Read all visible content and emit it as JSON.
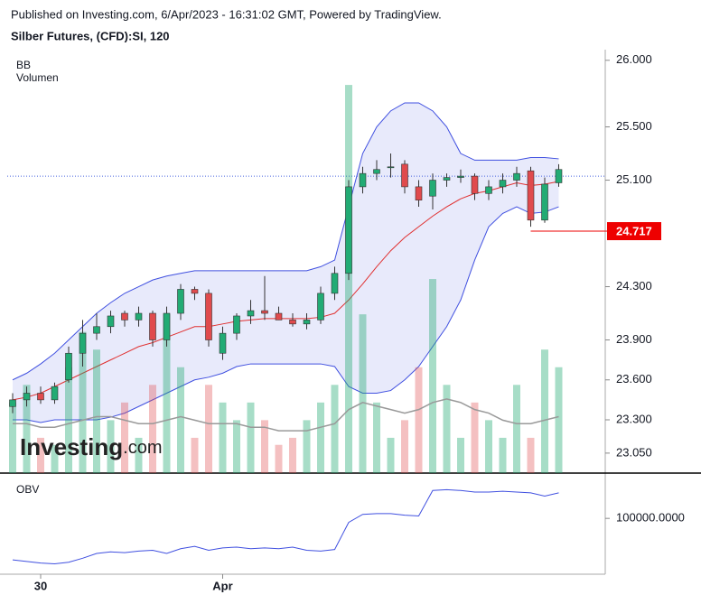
{
  "chart_data": {
    "type": "candlestick",
    "title": "Published on Investing.com, 6/Apr/2023 - 16:31:02 GMT, Powered by TradingView.",
    "subtitle": "Silber Futures, (CFD):SI, 120",
    "indicators": [
      "BB",
      "Volumen"
    ],
    "obv_label": "OBV",
    "logo": {
      "name": "Investing",
      "suffix": ".com"
    },
    "categories": [
      null,
      null,
      "30",
      null,
      null,
      null,
      null,
      null,
      null,
      null,
      null,
      null,
      null,
      null,
      null,
      "Apr",
      null,
      null,
      null,
      null,
      null,
      null,
      null,
      null,
      null,
      null,
      null,
      null,
      null,
      null,
      null,
      null,
      null,
      null,
      null,
      null,
      null,
      null,
      null,
      null
    ],
    "open": [
      23.4,
      23.45,
      23.5,
      23.45,
      23.6,
      23.8,
      23.95,
      24.0,
      24.1,
      24.05,
      24.1,
      23.9,
      24.1,
      24.28,
      24.25,
      23.8,
      23.95,
      24.08,
      24.12,
      24.1,
      24.05,
      24.02,
      24.05,
      24.25,
      24.4,
      25.05,
      25.15,
      25.2,
      25.22,
      25.05,
      24.98,
      25.1,
      25.12,
      25.13,
      25.0,
      25.05,
      25.1,
      25.17,
      24.8,
      25.08
    ],
    "high": [
      23.5,
      23.55,
      23.55,
      23.58,
      23.85,
      24.05,
      24.1,
      24.12,
      24.12,
      24.15,
      24.12,
      24.15,
      24.32,
      24.3,
      24.28,
      24.0,
      24.1,
      24.2,
      24.38,
      24.15,
      24.1,
      24.1,
      24.3,
      24.45,
      25.1,
      25.2,
      25.25,
      25.3,
      25.25,
      25.1,
      25.15,
      25.15,
      25.18,
      25.15,
      25.1,
      25.15,
      25.2,
      25.2,
      25.12,
      25.22
    ],
    "low": [
      23.35,
      23.4,
      23.42,
      23.42,
      23.58,
      23.7,
      23.9,
      23.95,
      24.0,
      24.0,
      23.85,
      23.85,
      24.05,
      24.2,
      23.85,
      23.75,
      23.9,
      24.02,
      24.05,
      24.05,
      24.0,
      23.98,
      24.02,
      24.2,
      24.35,
      25.0,
      25.1,
      25.12,
      25.0,
      24.9,
      24.88,
      25.05,
      25.08,
      24.95,
      24.95,
      25.0,
      25.05,
      24.75,
      24.78,
      25.05
    ],
    "close": [
      23.45,
      23.5,
      23.45,
      23.55,
      23.8,
      23.95,
      24.0,
      24.08,
      24.05,
      24.1,
      23.9,
      24.1,
      24.28,
      24.25,
      23.9,
      23.95,
      24.08,
      24.12,
      24.1,
      24.05,
      24.02,
      24.05,
      24.25,
      24.4,
      25.05,
      25.15,
      25.18,
      25.2,
      25.05,
      24.95,
      25.1,
      25.12,
      25.13,
      25.0,
      25.05,
      25.1,
      25.15,
      24.8,
      25.07,
      25.18
    ],
    "bb_upper": [
      23.6,
      23.65,
      23.72,
      23.8,
      23.9,
      24.0,
      24.1,
      24.18,
      24.25,
      24.3,
      24.35,
      24.38,
      24.4,
      24.42,
      24.42,
      24.42,
      24.42,
      24.42,
      24.42,
      24.42,
      24.42,
      24.42,
      24.45,
      24.5,
      24.9,
      25.3,
      25.5,
      25.62,
      25.68,
      25.68,
      25.62,
      25.5,
      25.3,
      25.25,
      25.25,
      25.25,
      25.25,
      25.27,
      25.27,
      25.26
    ],
    "bb_middle": [
      23.45,
      23.47,
      23.5,
      23.55,
      23.6,
      23.65,
      23.7,
      23.75,
      23.8,
      23.85,
      23.88,
      23.92,
      23.96,
      24.0,
      24.0,
      24.02,
      24.04,
      24.05,
      24.06,
      24.06,
      24.06,
      24.06,
      24.07,
      24.1,
      24.2,
      24.32,
      24.45,
      24.57,
      24.67,
      24.75,
      24.83,
      24.9,
      24.96,
      25.0,
      25.02,
      25.05,
      25.08,
      25.06,
      25.07,
      25.09
    ],
    "bb_lower": [
      23.3,
      23.3,
      23.28,
      23.3,
      23.3,
      23.3,
      23.3,
      23.32,
      23.35,
      23.4,
      23.45,
      23.5,
      23.55,
      23.6,
      23.62,
      23.65,
      23.7,
      23.72,
      23.72,
      23.72,
      23.72,
      23.72,
      23.72,
      23.7,
      23.55,
      23.5,
      23.5,
      23.52,
      23.6,
      23.7,
      23.85,
      24.0,
      24.2,
      24.5,
      24.75,
      24.85,
      24.9,
      24.85,
      24.86,
      24.9
    ],
    "volume": [
      20,
      25,
      10,
      8,
      30,
      40,
      35,
      15,
      20,
      10,
      25,
      45,
      30,
      10,
      25,
      20,
      15,
      20,
      15,
      8,
      10,
      15,
      20,
      25,
      110,
      45,
      20,
      10,
      15,
      30,
      55,
      25,
      10,
      20,
      15,
      10,
      25,
      10,
      35,
      30
    ],
    "volume_ma": [
      14,
      14,
      13,
      13,
      14,
      15,
      16,
      16,
      15,
      14,
      14,
      15,
      16,
      15,
      14,
      14,
      14,
      13,
      13,
      12,
      12,
      12,
      13,
      14,
      18,
      20,
      19,
      18,
      17,
      18,
      20,
      21,
      20,
      18,
      17,
      15,
      14,
      14,
      15,
      16
    ],
    "volume_lim": [
      0,
      120
    ],
    "obv": [
      99480,
      99460,
      99440,
      99430,
      99450,
      99500,
      99560,
      99580,
      99570,
      99590,
      99600,
      99560,
      99620,
      99650,
      99600,
      99630,
      99640,
      99620,
      99630,
      99620,
      99640,
      99600,
      99590,
      99610,
      99950,
      100050,
      100060,
      100060,
      100040,
      100030,
      100350,
      100360,
      100350,
      100330,
      100330,
      100340,
      100330,
      100320,
      100280,
      100320
    ],
    "obv_ylim": [
      99300,
      100500
    ],
    "obv_yticks": [
      {
        "value": 100000,
        "label": "100000.0000"
      }
    ],
    "ylim": [
      22.9,
      26.08
    ],
    "yticks": [
      {
        "value": 26,
        "label": "26.000"
      },
      {
        "value": 25.5,
        "label": "25.500"
      },
      {
        "value": 25.1,
        "label": "25.100"
      },
      {
        "value": 24.3,
        "label": "24.300"
      },
      {
        "value": 23.9,
        "label": "23.900"
      },
      {
        "value": 23.6,
        "label": "23.600"
      },
      {
        "value": 23.3,
        "label": "23.300"
      },
      {
        "value": 23.05,
        "label": "23.050"
      }
    ],
    "price_marker": 24.717,
    "reference_line": 25.13,
    "up_color": "#22ab74",
    "down_color": "#e04a4d",
    "band_color": "#4050e0",
    "middle_color": "#e03030"
  }
}
